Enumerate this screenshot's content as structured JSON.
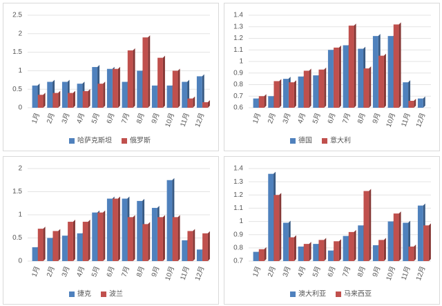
{
  "chart_data": [
    {
      "type": "bar",
      "categories": [
        "1月",
        "2月",
        "3月",
        "4月",
        "5月",
        "6月",
        "7月",
        "8月",
        "9月",
        "10月",
        "11月",
        "12月"
      ],
      "series": [
        {
          "name": "哈萨克斯坦",
          "color": "#4f81bd",
          "values": [
            0.6,
            0.7,
            0.7,
            0.65,
            1.1,
            1.05,
            0.7,
            1.0,
            0.6,
            0.6,
            0.7,
            0.85
          ]
        },
        {
          "name": "俄罗斯",
          "color": "#c0504d",
          "values": [
            0.35,
            0.4,
            0.4,
            0.45,
            0.65,
            1.05,
            1.55,
            1.9,
            1.35,
            1.0,
            0.25,
            0.15
          ]
        }
      ],
      "ylim": [
        0,
        2.5
      ],
      "yticks": [
        0,
        0.5,
        1,
        1.5,
        2,
        2.5
      ],
      "grid": true,
      "legend": "bottom"
    },
    {
      "type": "bar",
      "categories": [
        "1月",
        "2月",
        "3月",
        "4月",
        "5月",
        "6月",
        "7月",
        "8月",
        "9月",
        "10月",
        "11月",
        "12月"
      ],
      "series": [
        {
          "name": "德国",
          "color": "#4f81bd",
          "values": [
            0.68,
            0.7,
            0.85,
            0.87,
            0.88,
            1.1,
            1.14,
            1.11,
            1.22,
            1.22,
            0.82,
            0.68
          ]
        },
        {
          "name": "意大利",
          "color": "#c0504d",
          "values": [
            0.7,
            0.83,
            0.82,
            0.92,
            0.93,
            1.12,
            1.31,
            0.94,
            1.05,
            1.32,
            0.66,
            0.6
          ]
        }
      ],
      "ylim": [
        0.6,
        1.4
      ],
      "yticks": [
        0.6,
        0.7,
        0.8,
        0.9,
        1,
        1.1,
        1.2,
        1.3,
        1.4
      ],
      "grid": true,
      "legend": "bottom"
    },
    {
      "type": "bar",
      "categories": [
        "1月",
        "2月",
        "3月",
        "4月",
        "5月",
        "6月",
        "7月",
        "8月",
        "9月",
        "10月",
        "11月",
        "12月"
      ],
      "series": [
        {
          "name": "捷克",
          "color": "#4f81bd",
          "values": [
            0.3,
            0.5,
            0.55,
            0.6,
            1.05,
            1.35,
            1.35,
            1.3,
            1.15,
            1.75,
            0.45,
            0.25
          ]
        },
        {
          "name": "波兰",
          "color": "#c0504d",
          "values": [
            0.7,
            0.65,
            0.85,
            0.85,
            1.05,
            1.35,
            0.95,
            0.8,
            0.95,
            0.95,
            0.65,
            0.6
          ]
        }
      ],
      "ylim": [
        0,
        2
      ],
      "yticks": [
        0,
        0.5,
        1,
        1.5,
        2
      ],
      "grid": true,
      "legend": "bottom"
    },
    {
      "type": "bar",
      "categories": [
        "1月",
        "2月",
        "3月",
        "4月",
        "5月",
        "6月",
        "7月",
        "8月",
        "9月",
        "10月",
        "11月",
        "12月"
      ],
      "series": [
        {
          "name": "澳大利亚",
          "color": "#4f81bd",
          "values": [
            0.77,
            1.36,
            0.99,
            0.81,
            0.83,
            0.78,
            0.89,
            0.97,
            0.82,
            1.0,
            0.99,
            1.12
          ]
        },
        {
          "name": "马来西亚",
          "color": "#c0504d",
          "values": [
            0.79,
            1.2,
            0.88,
            0.83,
            0.86,
            0.85,
            0.92,
            1.23,
            0.86,
            1.06,
            0.81,
            0.97
          ]
        }
      ],
      "ylim": [
        0.7,
        1.4
      ],
      "yticks": [
        0.7,
        0.8,
        0.9,
        1,
        1.1,
        1.2,
        1.3,
        1.4
      ],
      "grid": true,
      "legend": "bottom"
    }
  ]
}
